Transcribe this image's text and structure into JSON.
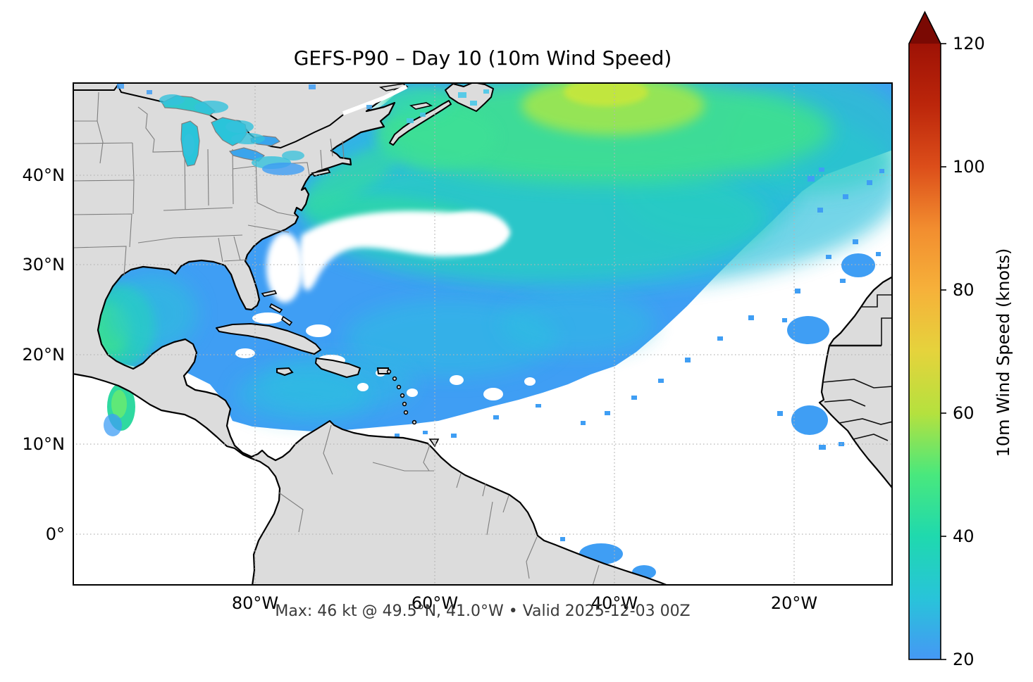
{
  "figure": {
    "title": "GEFS-P90 – Day 10 (10m Wind Speed)",
    "caption": "Max: 46 kt @ 49.5°N, 41.0°W • Valid 2025-12-03 00Z"
  },
  "axes": {
    "x_ticks": [
      "80°W",
      "60°W",
      "40°W",
      "20°W"
    ],
    "y_ticks": [
      "40°N",
      "30°N",
      "20°N",
      "10°N",
      "0°"
    ]
  },
  "colorbar": {
    "label": "10m Wind Speed (knots)",
    "ticks": [
      "120",
      "100",
      "80",
      "60",
      "40",
      "20"
    ],
    "min": 20,
    "max": 120,
    "extend": "max",
    "arrow_color": "#7A0903",
    "stops": [
      {
        "value": 20,
        "color": "#4598F5"
      },
      {
        "value": 30,
        "color": "#28C4D9"
      },
      {
        "value": 40,
        "color": "#1FD9AE"
      },
      {
        "value": 50,
        "color": "#49E87D"
      },
      {
        "value": 60,
        "color": "#B5E13E"
      },
      {
        "value": 70,
        "color": "#E5D33C"
      },
      {
        "value": 80,
        "color": "#F6B13A"
      },
      {
        "value": 90,
        "color": "#F28D2F"
      },
      {
        "value": 100,
        "color": "#DC4E1A"
      },
      {
        "value": 110,
        "color": "#BC260B"
      },
      {
        "value": 120,
        "color": "#9E1205"
      }
    ]
  },
  "chart_data": {
    "type": "heatmap",
    "title": "GEFS-P90 – Day 10 (10m Wind Speed)",
    "model": "GEFS-P90",
    "forecast_lead": "Day 10",
    "variable": "10m Wind Speed",
    "units": "knots",
    "valid": "2025-12-03 00Z",
    "max_value_kt": 46,
    "max_location_lat": "49.5°N",
    "max_location_lon": "41.0°W",
    "colorbar_range": [
      20,
      120
    ],
    "colorbar_ticks": [
      20,
      40,
      60,
      80,
      100,
      120
    ],
    "colorbar_extend": "max",
    "masked_below_kt": 20,
    "x_tick_labels": [
      "80°W",
      "60°W",
      "40°W",
      "20°W"
    ],
    "y_tick_labels": [
      "40°N",
      "30°N",
      "20°N",
      "10°N",
      "0°"
    ],
    "map_extent_lon": [
      "100°W",
      "10°W"
    ],
    "map_extent_lat": [
      "6°S",
      "50°N"
    ],
    "grid": true,
    "legend_position": "right colorbar",
    "features": [
      {
        "region": "NE Atlantic near 49.5N 41W",
        "approx_value_kt": "40-46",
        "shade": "yellow-green maximum plume"
      },
      {
        "region": "North Atlantic 40-50N storm track",
        "approx_value_kt": "32-42",
        "shade": "green"
      },
      {
        "region": "Gulf Stream / central Atlantic 28-40N",
        "approx_value_kt": "24-34",
        "shade": "cyan-teal"
      },
      {
        "region": "Trade-wind belt 12-22N, 65-35W",
        "approx_value_kt": "20-28",
        "shade": "blue"
      },
      {
        "region": "Gulf of Mexico",
        "approx_value_kt": "22-36",
        "shade": "blue with teal-green max in Bay of Campeche"
      },
      {
        "region": "Caribbean Sea",
        "approx_value_kt": "20-30",
        "shade": "blue"
      },
      {
        "region": "Gulf of Tehuantepec (Pacific)",
        "approx_value_kt": "30-40",
        "shade": "green jet"
      },
      {
        "region": "Great Lakes",
        "approx_value_kt": "20-30",
        "shade": "cyan"
      },
      {
        "region": "Canary / Cape Verde / Morocco offshore patches",
        "approx_value_kt": "20-24",
        "shade": "blue patches"
      },
      {
        "region": "Subtropical high SE of field and tropics south of trades",
        "approx_value_kt": "<20",
        "shade": "white (masked)"
      }
    ],
    "colors": {
      "land": "#DCDCDC",
      "coastline": "#000000",
      "state_border": "#7E7E7E",
      "gridline": "#B5B5B5",
      "masked_ocean": "#FFFFFF",
      "field_blue": "#3F9EF4",
      "field_cyan": "#2BC0DC",
      "field_teal": "#25D3B8",
      "field_green": "#3FE28B",
      "field_yellow_green": "#C4E73E"
    }
  }
}
